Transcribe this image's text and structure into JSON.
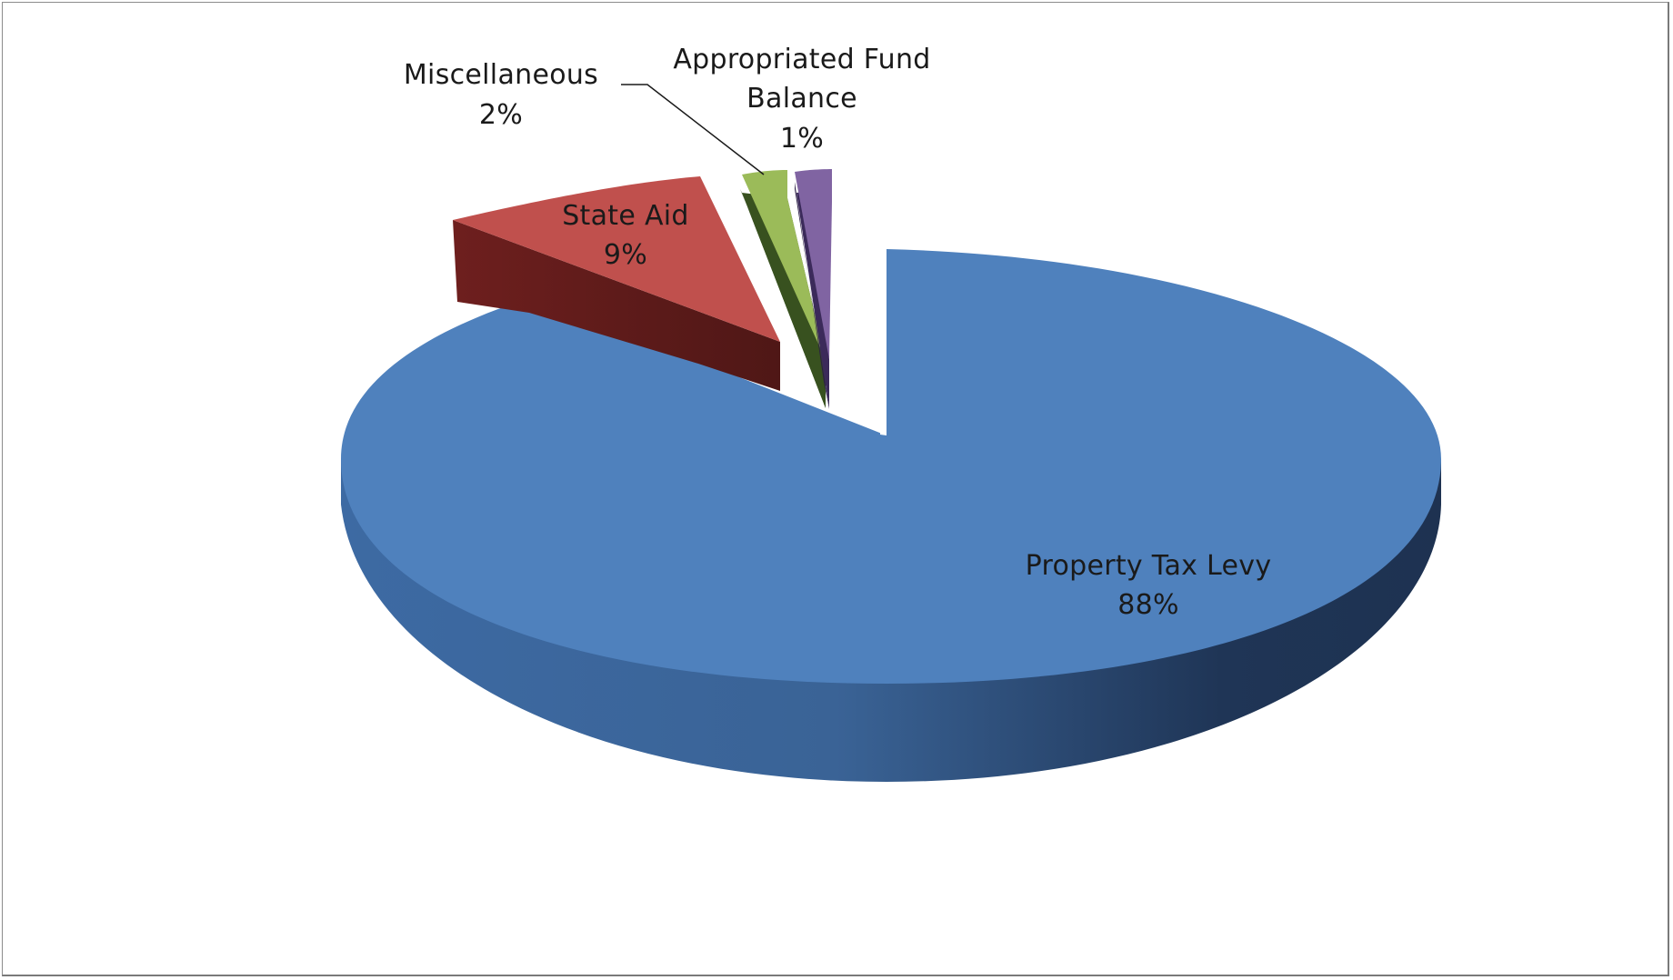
{
  "chart_data": {
    "type": "pie",
    "style": "3d-exploded",
    "legend": "none",
    "categories": [
      "Property Tax Levy",
      "State Aid",
      "Miscellaneous",
      "Appropriated Fund Balance"
    ],
    "values": [
      88,
      9,
      2,
      1
    ],
    "unit": "%",
    "labels": [
      {
        "name": "Property Tax Levy",
        "percent": "88%"
      },
      {
        "name": "State Aid",
        "percent": "9%"
      },
      {
        "name": "Miscellaneous",
        "percent": "2%"
      },
      {
        "name_lines": [
          "Appropriated Fund",
          "Balance"
        ],
        "percent": "1%"
      }
    ],
    "colors": {
      "property_tax_levy": "#4f81bd",
      "state_aid": "#c0504d",
      "miscellaneous": "#9bbb59",
      "appropriated_fund_balance": "#8064a2"
    }
  }
}
